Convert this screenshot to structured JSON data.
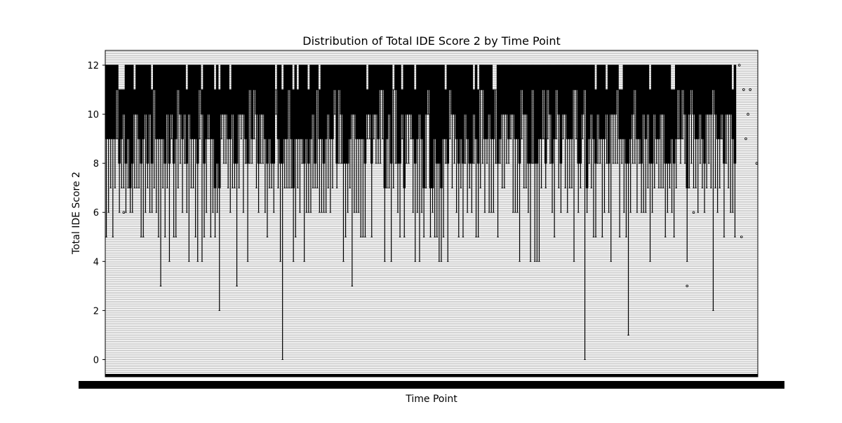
{
  "chart_data": {
    "type": "box",
    "title": "Distribution of Total IDE Score 2 by Time Point",
    "xlabel": "Time Point",
    "ylabel": "Total IDE Score 2",
    "ylim": [
      -0.7,
      12.6
    ],
    "yticks": [
      0,
      2,
      4,
      6,
      8,
      10,
      12
    ],
    "grid": true,
    "legend": "none",
    "category_count": 300,
    "outliers": [
      {
        "category_index": 291,
        "y": 12
      },
      {
        "category_index": 293,
        "y": 11
      },
      {
        "category_index": 296,
        "y": 11
      },
      {
        "category_index": 295,
        "y": 10
      },
      {
        "category_index": 294,
        "y": 9
      },
      {
        "category_index": 292,
        "y": 5
      },
      {
        "category_index": 299,
        "y": 8
      },
      {
        "category_index": 8,
        "y": 6
      },
      {
        "category_index": 267,
        "y": 3
      },
      {
        "category_index": 270,
        "y": 6
      }
    ],
    "low_whiskers": [
      {
        "category_index": 25,
        "y": 3
      },
      {
        "category_index": 38,
        "y": 4
      },
      {
        "category_index": 44,
        "y": 4
      },
      {
        "category_index": 52,
        "y": 2
      },
      {
        "category_index": 60,
        "y": 3
      },
      {
        "category_index": 81,
        "y": 0
      },
      {
        "category_index": 113,
        "y": 3
      },
      {
        "category_index": 131,
        "y": 4
      },
      {
        "category_index": 144,
        "y": 4
      },
      {
        "category_index": 199,
        "y": 4
      },
      {
        "category_index": 215,
        "y": 4
      },
      {
        "category_index": 220,
        "y": 0
      },
      {
        "category_index": 232,
        "y": 4
      },
      {
        "category_index": 240,
        "y": 1
      },
      {
        "category_index": 279,
        "y": 2
      }
    ],
    "colors": {
      "box": "#000000",
      "grid": "#b0b0b0",
      "median": "#000000"
    }
  }
}
